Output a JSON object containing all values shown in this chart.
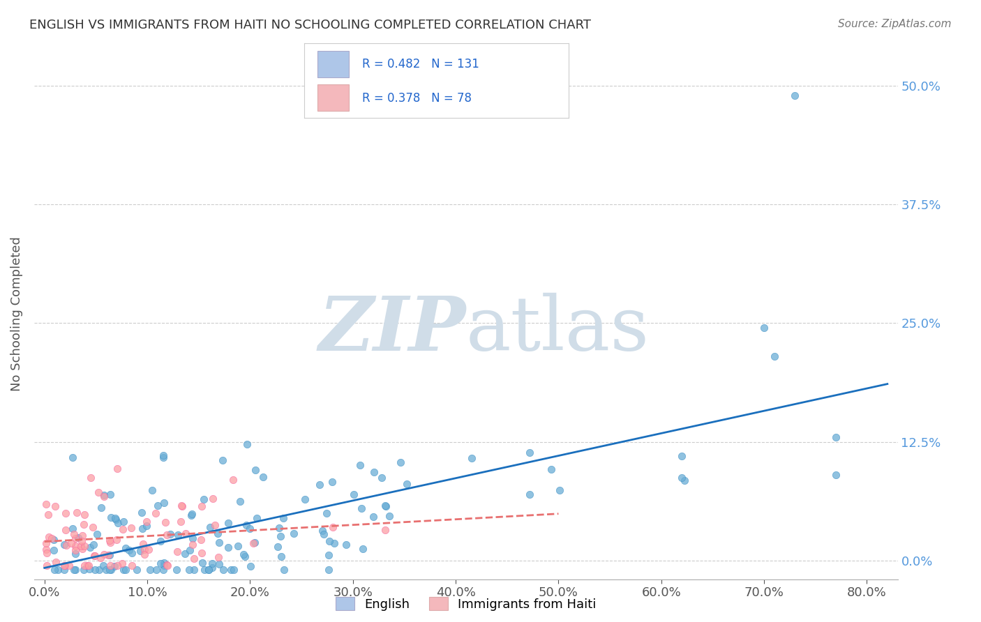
{
  "title": "ENGLISH VS IMMIGRANTS FROM HAITI NO SCHOOLING COMPLETED CORRELATION CHART",
  "source": "Source: ZipAtlas.com",
  "ylabel": "No Schooling Completed",
  "xlabel_ticks": [
    "0.0%",
    "10.0%",
    "20.0%",
    "30.0%",
    "40.0%",
    "50.0%",
    "60.0%",
    "70.0%",
    "80.0%"
  ],
  "ytick_labels": [
    "0.0%",
    "12.5%",
    "25.0%",
    "37.5%",
    "50.0%"
  ],
  "ytick_values": [
    0.0,
    0.125,
    0.25,
    0.375,
    0.5
  ],
  "xtick_values": [
    0.0,
    0.1,
    0.2,
    0.3,
    0.4,
    0.5,
    0.6,
    0.7,
    0.8
  ],
  "xlim": [
    -0.01,
    0.83
  ],
  "ylim": [
    -0.02,
    0.54
  ],
  "english_R": 0.482,
  "english_N": 131,
  "haiti_R": 0.378,
  "haiti_N": 78,
  "english_color": "#6baed6",
  "english_color_dark": "#4292c6",
  "haiti_color": "#fc9fa4",
  "haiti_color_dark": "#f768a1",
  "english_line_color": "#1a6fbd",
  "haiti_line_color": "#e87070",
  "legend_color_english": "#aec6e8",
  "legend_color_haiti": "#f4b8bc",
  "watermark_color": "#d0dde8",
  "background_color": "#ffffff",
  "grid_color": "#cccccc",
  "title_color": "#333333",
  "axis_label_color": "#555555",
  "tick_label_color_right": "#5599dd",
  "english_seed": 42,
  "haiti_seed": 7
}
